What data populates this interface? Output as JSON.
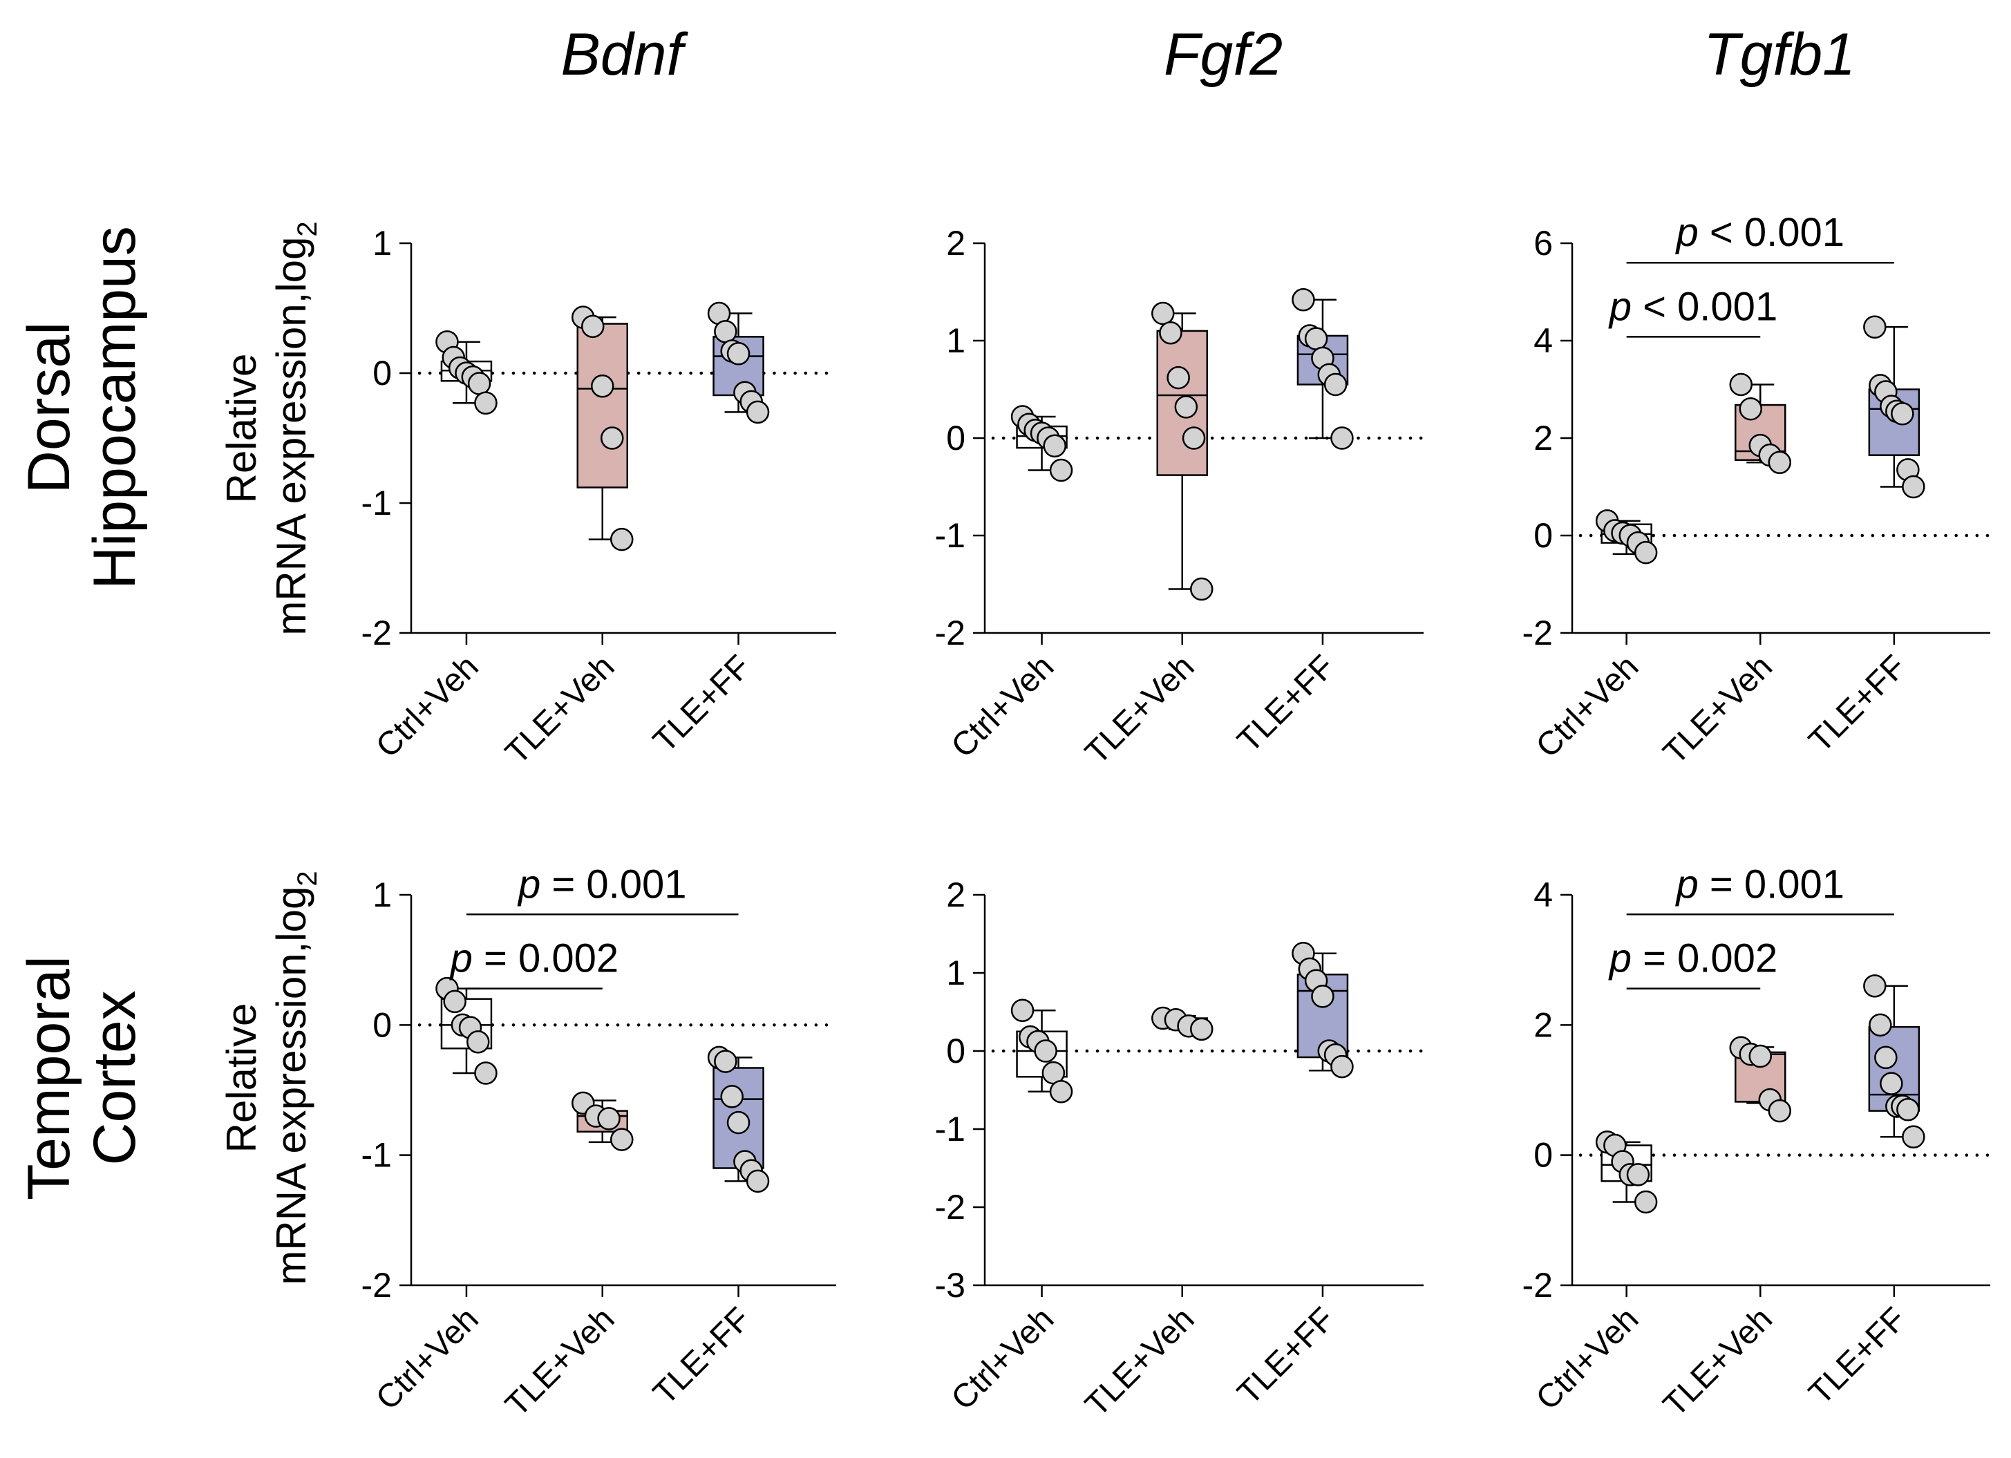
{
  "figure": {
    "row_labels": [
      [
        "Dorsal",
        "Hippocampus"
      ],
      [
        "Temporal",
        "Cortex"
      ]
    ],
    "column_titles": [
      "Bdnf",
      "Fgf2",
      "Tgfb1"
    ],
    "ylabel_line1": "Relative",
    "ylabel_line2": "mRNA expression,log",
    "ylabel_subscript": "2",
    "groups": [
      "Ctrl+Veh",
      "TLE+Veh",
      "TLE+FF"
    ],
    "group_colors": [
      "#ffffff",
      "#d8b3b0",
      "#a3a6cd"
    ],
    "point_color": "#d3d3d3"
  },
  "chart_data": [
    {
      "type": "box",
      "row": 0,
      "col": 0,
      "title": "Bdnf",
      "ylim": [
        -2,
        1
      ],
      "yticks": [
        1,
        0,
        -1,
        -2
      ],
      "ytick_labels": [
        "1",
        "0",
        "-1",
        "-2"
      ],
      "categories": [
        "Ctrl+Veh",
        "TLE+Veh",
        "TLE+FF"
      ],
      "groups": [
        {
          "name": "Ctrl+Veh",
          "min": -0.23,
          "q1": -0.06,
          "median": 0.02,
          "q3": 0.09,
          "max": 0.24,
          "points": [
            0.24,
            0.12,
            0.04,
            0.0,
            -0.03,
            -0.08,
            -0.23
          ]
        },
        {
          "name": "TLE+Veh",
          "min": -1.28,
          "q1": -0.88,
          "median": -0.12,
          "q3": 0.38,
          "max": 0.43,
          "points": [
            0.43,
            0.36,
            -0.1,
            -0.5,
            -1.28
          ]
        },
        {
          "name": "TLE+FF",
          "min": -0.3,
          "q1": -0.17,
          "median": 0.13,
          "q3": 0.28,
          "max": 0.46,
          "points": [
            0.46,
            0.32,
            0.17,
            0.15,
            -0.15,
            -0.22,
            -0.3
          ]
        }
      ],
      "comparisons": []
    },
    {
      "type": "box",
      "row": 0,
      "col": 1,
      "title": "Fgf2",
      "ylim": [
        -2,
        2
      ],
      "yticks": [
        2,
        1,
        0,
        -1,
        -2
      ],
      "ytick_labels": [
        "2",
        "1",
        "0",
        "-1",
        "-2"
      ],
      "categories": [
        "Ctrl+Veh",
        "TLE+Veh",
        "TLE+FF"
      ],
      "groups": [
        {
          "name": "Ctrl+Veh",
          "min": -0.33,
          "q1": -0.1,
          "median": 0.02,
          "q3": 0.12,
          "max": 0.22,
          "points": [
            0.22,
            0.14,
            0.08,
            0.05,
            0.0,
            -0.08,
            -0.33
          ]
        },
        {
          "name": "TLE+Veh",
          "min": -1.55,
          "q1": -0.38,
          "median": 0.44,
          "q3": 1.1,
          "max": 1.28,
          "points": [
            1.28,
            1.08,
            0.62,
            0.32,
            0.0,
            -1.55
          ]
        },
        {
          "name": "TLE+FF",
          "min": 0.0,
          "q1": 0.55,
          "median": 0.86,
          "q3": 1.05,
          "max": 1.42,
          "points": [
            1.42,
            1.05,
            1.02,
            0.82,
            0.65,
            0.55,
            0.0
          ]
        }
      ],
      "comparisons": []
    },
    {
      "type": "box",
      "row": 0,
      "col": 2,
      "title": "Tgfb1",
      "ylim": [
        -2,
        6
      ],
      "yticks": [
        6,
        4,
        2,
        0,
        -2
      ],
      "ytick_labels": [
        "6",
        "4",
        "2",
        "0",
        "-2"
      ],
      "categories": [
        "Ctrl+Veh",
        "TLE+Veh",
        "TLE+FF"
      ],
      "groups": [
        {
          "name": "Ctrl+Veh",
          "min": -0.38,
          "q1": -0.15,
          "median": 0.03,
          "q3": 0.23,
          "max": 0.3,
          "points": [
            0.3,
            0.1,
            0.05,
            0.0,
            -0.15,
            -0.35
          ]
        },
        {
          "name": "TLE+Veh",
          "min": 1.5,
          "q1": 1.55,
          "median": 1.73,
          "q3": 2.68,
          "max": 3.1,
          "points": [
            3.1,
            2.6,
            1.85,
            1.65,
            1.5
          ]
        },
        {
          "name": "TLE+FF",
          "min": 1.0,
          "q1": 1.65,
          "median": 2.6,
          "q3": 3.0,
          "max": 4.28,
          "points": [
            4.28,
            3.08,
            2.95,
            2.65,
            2.55,
            2.5,
            1.35,
            1.0
          ]
        }
      ],
      "comparisons": [
        {
          "from": 0,
          "to": 1,
          "level": 0,
          "label_italic": "p",
          "label_rest": " < 0.001"
        },
        {
          "from": 0,
          "to": 2,
          "level": 1,
          "label_italic": "p",
          "label_rest": " < 0.001"
        }
      ]
    },
    {
      "type": "box",
      "row": 1,
      "col": 0,
      "title": "Bdnf",
      "ylim": [
        -2,
        1
      ],
      "yticks": [
        1,
        0,
        -1,
        -2
      ],
      "ytick_labels": [
        "1",
        "0",
        "-1",
        "-2"
      ],
      "categories": [
        "Ctrl+Veh",
        "TLE+Veh",
        "TLE+FF"
      ],
      "groups": [
        {
          "name": "Ctrl+Veh",
          "min": -0.37,
          "q1": -0.18,
          "median": 0.0,
          "q3": 0.2,
          "max": 0.28,
          "points": [
            0.28,
            0.18,
            0.0,
            -0.02,
            -0.13,
            -0.37
          ]
        },
        {
          "name": "TLE+Veh",
          "min": -0.9,
          "q1": -0.82,
          "median": -0.7,
          "q3": -0.66,
          "max": -0.58,
          "points": [
            -0.6,
            -0.7,
            -0.72,
            -0.88
          ]
        },
        {
          "name": "TLE+FF",
          "min": -1.2,
          "q1": -1.1,
          "median": -0.57,
          "q3": -0.33,
          "max": -0.25,
          "points": [
            -0.25,
            -0.28,
            -0.55,
            -0.75,
            -1.05,
            -1.12,
            -1.2
          ]
        }
      ],
      "comparisons": [
        {
          "from": 0,
          "to": 1,
          "level": 0,
          "label_italic": "p",
          "label_rest": " = 0.002"
        },
        {
          "from": 0,
          "to": 2,
          "level": 1,
          "label_italic": "p",
          "label_rest": " = 0.001"
        }
      ]
    },
    {
      "type": "box",
      "row": 1,
      "col": 1,
      "title": "Fgf2",
      "ylim": [
        -3,
        2
      ],
      "yticks": [
        2,
        1,
        0,
        -1,
        -2,
        -3
      ],
      "ytick_labels": [
        "2",
        "1",
        "0",
        "-1",
        "-2",
        "-3"
      ],
      "categories": [
        "Ctrl+Veh",
        "TLE+Veh",
        "TLE+FF"
      ],
      "groups": [
        {
          "name": "Ctrl+Veh",
          "min": -0.52,
          "q1": -0.33,
          "median": 0.0,
          "q3": 0.25,
          "max": 0.52,
          "points": [
            0.52,
            0.18,
            0.12,
            0.0,
            -0.28,
            -0.52
          ]
        },
        {
          "name": "TLE+Veh",
          "min": 0.28,
          "q1": 0.3,
          "median": 0.4,
          "q3": 0.42,
          "max": 0.45,
          "points": [
            0.42,
            0.4,
            0.32,
            0.28
          ]
        },
        {
          "name": "TLE+FF",
          "min": -0.25,
          "q1": -0.08,
          "median": 0.77,
          "q3": 0.98,
          "max": 1.25,
          "points": [
            1.25,
            1.05,
            0.9,
            0.7,
            0.0,
            -0.05,
            -0.2
          ]
        }
      ],
      "comparisons": []
    },
    {
      "type": "box",
      "row": 1,
      "col": 2,
      "title": "Tgfb1",
      "ylim": [
        -2,
        4
      ],
      "yticks": [
        4,
        2,
        0,
        -2
      ],
      "ytick_labels": [
        "4",
        "2",
        "0",
        "-2"
      ],
      "categories": [
        "Ctrl+Veh",
        "TLE+Veh",
        "TLE+FF"
      ],
      "groups": [
        {
          "name": "Ctrl+Veh",
          "min": -0.72,
          "q1": -0.4,
          "median": -0.15,
          "q3": 0.15,
          "max": 0.2,
          "points": [
            0.2,
            0.15,
            -0.1,
            -0.3,
            -0.3,
            -0.72
          ]
        },
        {
          "name": "TLE+Veh",
          "min": 0.8,
          "q1": 0.82,
          "median": 1.55,
          "q3": 1.58,
          "max": 1.66,
          "points": [
            1.65,
            1.55,
            1.52,
            0.85,
            0.68
          ]
        },
        {
          "name": "TLE+FF",
          "min": 0.28,
          "q1": 0.68,
          "median": 0.93,
          "q3": 1.97,
          "max": 2.6,
          "points": [
            2.6,
            2.0,
            1.5,
            1.1,
            0.75,
            0.75,
            0.7,
            0.28
          ]
        }
      ],
      "comparisons": [
        {
          "from": 0,
          "to": 1,
          "level": 0,
          "label_italic": "p",
          "label_rest": " = 0.002"
        },
        {
          "from": 0,
          "to": 2,
          "level": 1,
          "label_italic": "p",
          "label_rest": " = 0.001"
        }
      ]
    }
  ]
}
